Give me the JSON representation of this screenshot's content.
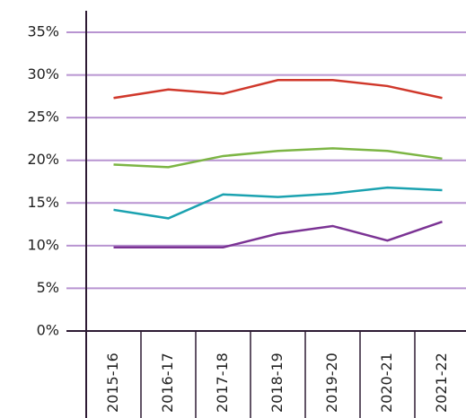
{
  "chart_data": {
    "type": "line",
    "categories": [
      "2015-16",
      "2016-17",
      "2017-18",
      "2018-19",
      "2019-20",
      "2020-21",
      "2021-22"
    ],
    "series": [
      {
        "color": "#d0382b",
        "values": [
          27.3,
          28.3,
          27.8,
          29.4,
          29.4,
          28.7,
          27.3
        ]
      },
      {
        "color": "#7cb544",
        "values": [
          19.5,
          19.2,
          20.5,
          21.1,
          21.4,
          21.1,
          20.2
        ]
      },
      {
        "color": "#1ba2b0",
        "values": [
          14.2,
          13.2,
          16.0,
          15.7,
          16.1,
          16.8,
          16.5
        ]
      },
      {
        "color": "#7b3394",
        "values": [
          9.8,
          9.8,
          9.8,
          11.4,
          12.3,
          10.6,
          12.8
        ]
      }
    ],
    "ylim": [
      0,
      35
    ],
    "yticks": [
      {
        "value": 0,
        "label": "0%"
      },
      {
        "value": 5,
        "label": "5%"
      },
      {
        "value": 10,
        "label": "10%"
      },
      {
        "value": 15,
        "label": "15%"
      },
      {
        "value": 20,
        "label": "20%"
      },
      {
        "value": 25,
        "label": "25%"
      },
      {
        "value": 30,
        "label": "30%"
      },
      {
        "value": 35,
        "label": "35%"
      }
    ],
    "grid": true,
    "grid_color": "#b894d1"
  }
}
